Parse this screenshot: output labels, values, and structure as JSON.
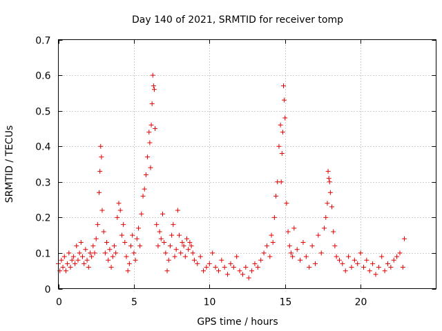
{
  "chart_data": {
    "type": "scatter",
    "title": "Day 140 of 2021, SRMTID for receiver tomp",
    "xlabel": "GPS time / hours",
    "ylabel": "SRMTID / TECUs",
    "xlim": [
      0,
      25
    ],
    "ylim": [
      0,
      0.7
    ],
    "xticks": [
      0,
      5,
      10,
      15,
      20
    ],
    "xtick_labels": [
      "0",
      "5",
      "10",
      "15",
      "20"
    ],
    "yticks": [
      0,
      0.1,
      0.2,
      0.3,
      0.4,
      0.5,
      0.6,
      0.7
    ],
    "ytick_labels": [
      "0",
      "0.1",
      "0.2",
      "0.3",
      "0.4",
      "0.5",
      "0.6",
      "0.7"
    ],
    "grid": true,
    "marker": "+",
    "color": "#e00000",
    "series": [
      {
        "name": "SRMTID",
        "x": [
          0.0,
          0.1,
          0.2,
          0.3,
          0.4,
          0.5,
          0.6,
          0.7,
          0.8,
          0.9,
          1.0,
          1.1,
          1.2,
          1.3,
          1.4,
          1.5,
          1.6,
          1.7,
          1.8,
          1.9,
          2.0,
          2.1,
          2.2,
          2.3,
          2.4,
          2.5,
          2.6,
          2.7,
          2.75,
          2.8,
          2.85,
          2.9,
          3.0,
          3.1,
          3.2,
          3.3,
          3.4,
          3.5,
          3.6,
          3.7,
          3.8,
          3.9,
          4.0,
          4.1,
          4.2,
          4.3,
          4.4,
          4.5,
          4.6,
          4.7,
          4.8,
          4.9,
          5.0,
          5.1,
          5.2,
          5.3,
          5.4,
          5.5,
          5.6,
          5.7,
          5.8,
          5.9,
          6.0,
          6.05,
          6.1,
          6.15,
          6.2,
          6.25,
          6.3,
          6.35,
          6.4,
          6.5,
          6.6,
          6.7,
          6.8,
          6.9,
          7.0,
          7.1,
          7.2,
          7.3,
          7.4,
          7.5,
          7.6,
          7.7,
          7.8,
          7.9,
          8.0,
          8.1,
          8.2,
          8.3,
          8.4,
          8.5,
          8.6,
          8.7,
          8.8,
          8.9,
          9.0,
          9.2,
          9.4,
          9.6,
          9.8,
          10.0,
          10.2,
          10.4,
          10.6,
          10.8,
          11.0,
          11.2,
          11.4,
          11.6,
          11.8,
          12.0,
          12.2,
          12.4,
          12.6,
          12.8,
          13.0,
          13.2,
          13.4,
          13.6,
          13.8,
          14.0,
          14.1,
          14.2,
          14.3,
          14.4,
          14.5,
          14.6,
          14.7,
          14.75,
          14.8,
          14.85,
          14.9,
          14.95,
          15.0,
          15.1,
          15.2,
          15.3,
          15.4,
          15.5,
          15.6,
          15.8,
          16.0,
          16.2,
          16.4,
          16.6,
          16.8,
          17.0,
          17.2,
          17.4,
          17.6,
          17.7,
          17.8,
          17.85,
          17.9,
          17.95,
          18.0,
          18.1,
          18.2,
          18.3,
          18.4,
          18.6,
          18.8,
          19.0,
          19.2,
          19.4,
          19.6,
          19.8,
          20.0,
          20.2,
          20.4,
          20.6,
          20.8,
          21.0,
          21.2,
          21.4,
          21.6,
          21.8,
          22.0,
          22.2,
          22.4,
          22.6,
          22.8,
          22.9
        ],
        "y": [
          0.07,
          0.05,
          0.08,
          0.06,
          0.09,
          0.05,
          0.07,
          0.1,
          0.06,
          0.08,
          0.09,
          0.07,
          0.12,
          0.08,
          0.1,
          0.13,
          0.09,
          0.07,
          0.11,
          0.08,
          0.06,
          0.1,
          0.09,
          0.12,
          0.1,
          0.14,
          0.18,
          0.27,
          0.33,
          0.4,
          0.37,
          0.22,
          0.16,
          0.1,
          0.13,
          0.08,
          0.11,
          0.06,
          0.09,
          0.12,
          0.1,
          0.2,
          0.24,
          0.22,
          0.15,
          0.18,
          0.13,
          0.09,
          0.05,
          0.07,
          0.12,
          0.15,
          0.1,
          0.08,
          0.14,
          0.17,
          0.12,
          0.21,
          0.26,
          0.28,
          0.32,
          0.37,
          0.44,
          0.41,
          0.34,
          0.46,
          0.52,
          0.6,
          0.57,
          0.56,
          0.45,
          0.18,
          0.12,
          0.16,
          0.14,
          0.21,
          0.13,
          0.1,
          0.05,
          0.08,
          0.12,
          0.15,
          0.18,
          0.09,
          0.11,
          0.22,
          0.15,
          0.1,
          0.13,
          0.12,
          0.09,
          0.14,
          0.11,
          0.13,
          0.12,
          0.1,
          0.08,
          0.07,
          0.09,
          0.05,
          0.06,
          0.07,
          0.1,
          0.06,
          0.05,
          0.08,
          0.06,
          0.04,
          0.07,
          0.06,
          0.09,
          0.05,
          0.04,
          0.06,
          0.03,
          0.05,
          0.07,
          0.06,
          0.08,
          0.1,
          0.12,
          0.09,
          0.15,
          0.13,
          0.2,
          0.26,
          0.3,
          0.4,
          0.46,
          0.3,
          0.38,
          0.44,
          0.57,
          0.53,
          0.48,
          0.24,
          0.16,
          0.12,
          0.1,
          0.09,
          0.17,
          0.11,
          0.08,
          0.13,
          0.09,
          0.06,
          0.12,
          0.07,
          0.15,
          0.1,
          0.17,
          0.2,
          0.24,
          0.33,
          0.31,
          0.3,
          0.27,
          0.23,
          0.16,
          0.12,
          0.09,
          0.08,
          0.07,
          0.05,
          0.09,
          0.06,
          0.08,
          0.07,
          0.1,
          0.06,
          0.08,
          0.05,
          0.07,
          0.04,
          0.06,
          0.09,
          0.05,
          0.07,
          0.06,
          0.08,
          0.09,
          0.1,
          0.06,
          0.14
        ]
      }
    ]
  }
}
